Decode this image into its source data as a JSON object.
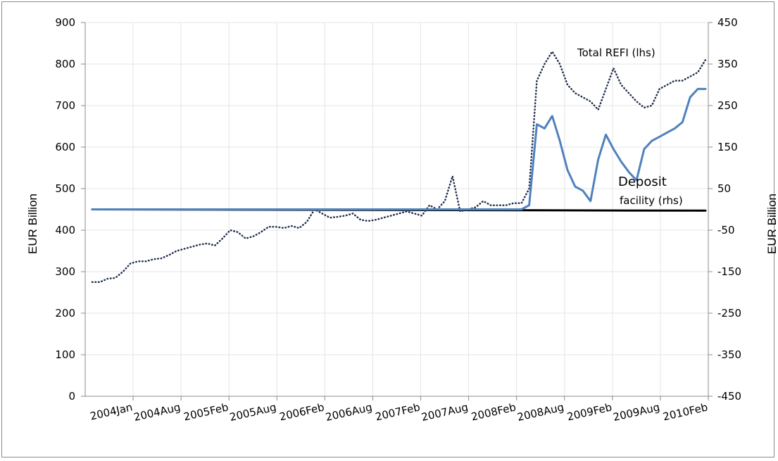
{
  "chart_data": {
    "type": "line",
    "title": "",
    "xlabel": "",
    "ylabel": "EUR Billion",
    "ylabel_right": "EUR Billion",
    "ylim": [
      0,
      900
    ],
    "ylim_right": [
      -450,
      450
    ],
    "y_ticks": [
      "0",
      "100",
      "200",
      "300",
      "400",
      "500",
      "600",
      "700",
      "800",
      "900"
    ],
    "y_ticks_right": [
      "-450",
      "-350",
      "-250",
      "-150",
      "-50",
      "50",
      "150",
      "250",
      "350",
      "450"
    ],
    "x_tick_labels": [
      "2004Jan",
      "2004Aug",
      "2005Feb",
      "2005Aug",
      "2006Feb",
      "2006Aug",
      "2007Feb",
      "2007Aug",
      "2008Feb",
      "2008Aug",
      "2009Feb",
      "2009Aug",
      "2010Feb"
    ],
    "x_range": [
      "2004-01",
      "2010-09"
    ],
    "grid": true,
    "annotations": [
      {
        "text": "Total REFI (lhs)",
        "series": "Total REFI (lhs)"
      },
      {
        "text": "Deposit",
        "series": "Deposit facility (rhs)"
      },
      {
        "text": "facility (rhs)",
        "series": "Deposit facility (rhs)"
      }
    ],
    "series": [
      {
        "name": "Total REFI (lhs)",
        "axis": "left",
        "style": "dotted",
        "color": "#1f2d4e",
        "x": [
          "2004-01",
          "2004-02",
          "2004-03",
          "2004-04",
          "2004-05",
          "2004-06",
          "2004-07",
          "2004-08",
          "2004-09",
          "2004-10",
          "2004-11",
          "2004-12",
          "2005-01",
          "2005-02",
          "2005-03",
          "2005-04",
          "2005-05",
          "2005-06",
          "2005-07",
          "2005-08",
          "2005-09",
          "2005-10",
          "2005-11",
          "2005-12",
          "2006-01",
          "2006-02",
          "2006-03",
          "2006-04",
          "2006-05",
          "2006-06",
          "2006-07",
          "2006-08",
          "2006-09",
          "2006-10",
          "2006-11",
          "2006-12",
          "2007-01",
          "2007-02",
          "2007-03",
          "2007-04",
          "2007-05",
          "2007-06",
          "2007-07",
          "2007-08",
          "2007-09",
          "2007-10",
          "2007-11",
          "2007-12",
          "2008-01",
          "2008-02",
          "2008-03",
          "2008-04",
          "2008-05",
          "2008-06",
          "2008-07",
          "2008-08",
          "2008-09",
          "2008-10",
          "2008-11",
          "2008-12",
          "2009-01",
          "2009-02",
          "2009-03",
          "2009-04",
          "2009-05",
          "2009-06",
          "2009-07",
          "2009-08",
          "2009-09",
          "2009-10",
          "2009-11",
          "2009-12",
          "2010-01",
          "2010-02",
          "2010-03",
          "2010-04",
          "2010-05",
          "2010-06",
          "2010-07",
          "2010-08",
          "2010-09"
        ],
        "values": [
          275,
          275,
          283,
          285,
          300,
          320,
          325,
          325,
          330,
          332,
          340,
          350,
          355,
          360,
          365,
          368,
          363,
          380,
          400,
          395,
          380,
          385,
          395,
          408,
          408,
          405,
          410,
          405,
          420,
          450,
          440,
          430,
          432,
          435,
          440,
          425,
          422,
          425,
          430,
          435,
          440,
          445,
          440,
          435,
          460,
          450,
          470,
          530,
          445,
          450,
          455,
          470,
          460,
          460,
          460,
          465,
          465,
          500,
          760,
          800,
          830,
          800,
          750,
          730,
          720,
          710,
          690,
          740,
          790,
          750,
          730,
          710,
          695,
          700,
          740,
          750,
          760,
          760,
          770,
          780,
          810
        ]
      },
      {
        "name": "Deposit facility (rhs)",
        "axis": "right",
        "style": "solid",
        "color": "#4f81bd",
        "x": [
          "2004-01",
          "2008-08",
          "2008-09",
          "2008-10",
          "2008-11",
          "2008-12",
          "2009-01",
          "2009-02",
          "2009-03",
          "2009-04",
          "2009-05",
          "2009-06",
          "2009-07",
          "2009-08",
          "2009-09",
          "2009-10",
          "2009-11",
          "2009-12",
          "2010-01",
          "2010-02",
          "2010-03",
          "2010-04",
          "2010-05",
          "2010-06",
          "2010-07",
          "2010-08",
          "2010-09"
        ],
        "values": [
          0,
          0,
          0,
          10,
          205,
          195,
          225,
          165,
          95,
          55,
          45,
          20,
          120,
          180,
          145,
          115,
          90,
          70,
          145,
          165,
          175,
          185,
          195,
          210,
          270,
          290,
          290
        ]
      },
      {
        "name": "Reference line",
        "axis": "right",
        "style": "solid",
        "color": "#000000",
        "x": [
          "2004-01",
          "2010-09"
        ],
        "values": [
          0,
          -3
        ]
      }
    ]
  }
}
